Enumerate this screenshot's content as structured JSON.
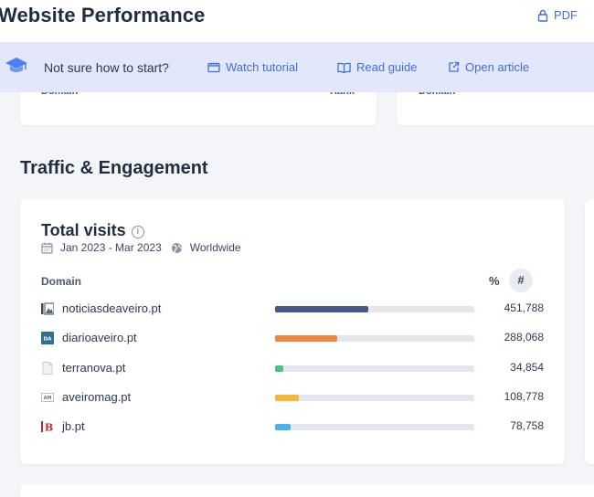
{
  "header": {
    "title": "Website Performance",
    "pdf_label": "PDF"
  },
  "banner": {
    "text": "Not sure how to start?",
    "links": [
      {
        "label": "Watch tutorial",
        "icon": "video-icon"
      },
      {
        "label": "Read guide",
        "icon": "book-icon"
      },
      {
        "label": "Open article",
        "icon": "external-link-icon"
      }
    ]
  },
  "previous_section": {
    "col_left": "Domain",
    "col_right": "Rank",
    "col_left_2": "Domain"
  },
  "section": {
    "title": "Traffic & Engagement"
  },
  "card": {
    "title": "Total visits",
    "info_icon": "info-icon",
    "date_range": "Jan 2023 - Mar 2023",
    "region": "Worldwide",
    "col_domain": "Domain",
    "col_pct": "%",
    "col_hash": "#",
    "rows": [
      {
        "domain": "noticiasdeaveiro.pt",
        "value": "451,788",
        "share": 0.47,
        "color": "#46578e"
      },
      {
        "domain": "diarioaveiro.pt",
        "value": "288,068",
        "share": 0.31,
        "color": "#f0843e"
      },
      {
        "domain": "terranova.pt",
        "value": "34,854",
        "share": 0.04,
        "color": "#4fbf87"
      },
      {
        "domain": "aveiromag.pt",
        "value": "108,778",
        "share": 0.12,
        "color": "#f4b73c"
      },
      {
        "domain": "jb.pt",
        "value": "78,758",
        "share": 0.08,
        "color": "#4ab2e4"
      }
    ]
  },
  "colors": {
    "accent": "#3e6fe0",
    "banner_bg": "#e2e7fb",
    "page_bg": "#f4f5f9"
  }
}
